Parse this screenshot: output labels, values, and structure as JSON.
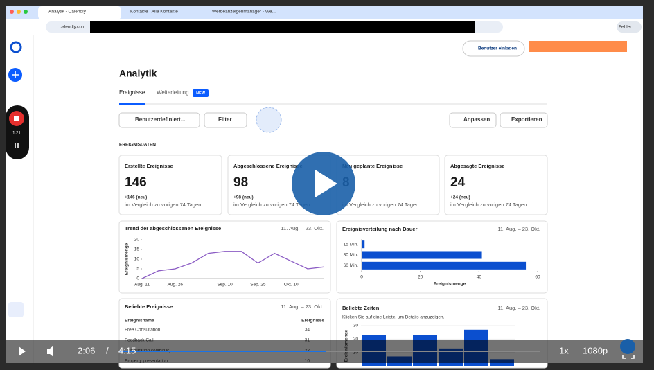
{
  "browser": {
    "tabs": [
      "Analytik - Calendly",
      "Kontakte | Alle Kontakte",
      "Werbeanzeigenmanager - We..."
    ],
    "url": "calendly.com",
    "profile_button": "Fehler"
  },
  "recorder": {
    "time": "1:21"
  },
  "header": {
    "invite_button": "Benutzer einladen"
  },
  "page": {
    "title": "Analytik",
    "tabs": [
      "Ereignisse",
      "Weiterleitung"
    ],
    "new_badge": "NEW",
    "date_filter": "Benutzerdefiniert...",
    "filter": "Filter",
    "customize": "Anpassen",
    "export": "Exportieren",
    "section_label": "EREIGNISDATEN"
  },
  "stats": [
    {
      "label": "Erstellte Ereignisse",
      "value": 146,
      "change": "+146 (neu)",
      "comparison": "im Vergleich zu vorigen 74 Tagen"
    },
    {
      "label": "Abgeschlossene Ereignisse",
      "value": 98,
      "change": "+98 (neu)",
      "comparison": "im Vergleich zu vorigen 74 Tagen"
    },
    {
      "label": "Neu geplante Ereignisse",
      "value": 8,
      "comparison": "im Vergleich zu vorigen 74 Tagen"
    },
    {
      "label": "Abgesagte Ereignisse",
      "value": 24,
      "change": "+24 (neu)",
      "comparison": "im Vergleich zu vorigen 74 Tagen"
    }
  ],
  "trend_chart": {
    "type": "line",
    "title": "Trend der abgeschlossenen Ereignisse",
    "date_range": "11. Aug. – 23. Okt.",
    "ylabel": "Ereignismenge",
    "categories": [
      "Aug. 11",
      null,
      "Aug. 26",
      null,
      null,
      "Sep. 10",
      null,
      "Sep. 25",
      null,
      "Okt. 10",
      null,
      null
    ],
    "values": [
      0,
      4,
      5,
      8,
      13,
      14,
      14,
      8,
      13,
      9,
      5,
      6
    ],
    "color": "#8b5cc4",
    "ylim": [
      0,
      20
    ],
    "yticks": [
      0,
      5,
      10,
      15,
      20
    ]
  },
  "duration_chart": {
    "type": "bar",
    "orientation": "horizontal",
    "title": "Ereignisverteilung nach Dauer",
    "date_range": "11. Aug. – 23. Okt.",
    "categories": [
      "15 Min.",
      "30 Min.",
      "60 Min."
    ],
    "values": [
      1,
      41,
      56
    ],
    "color": "#0b4fcf",
    "xlim": [
      0,
      60
    ],
    "xticks": [
      0,
      20,
      40,
      60
    ],
    "xlabel": "Ereignismenge"
  },
  "popular_events": {
    "title": "Beliebte Ereignisse",
    "date_range": "11. Aug. – 23. Okt.",
    "columns": [
      "Ereignisname",
      "Ereignisse"
    ],
    "rows": [
      [
        "Free Consultation",
        34
      ],
      [
        "Feedback Call",
        31
      ],
      [
        "Consultation (Webinar)",
        22
      ],
      [
        "Property presentation",
        10
      ]
    ]
  },
  "times_chart": {
    "type": "bar",
    "title": "Beliebte Zeiten",
    "date_range": "11. Aug. – 23. Okt.",
    "subtitle": "Klicken Sie auf eine Leiste, um Details anzuzeigen.",
    "ylabel": "Ereignismenge",
    "categories": [
      null,
      null,
      null,
      null,
      null,
      null
    ],
    "values": [
      23,
      7,
      23,
      13,
      27,
      5
    ],
    "color": "#0b4fcf",
    "ylim": [
      0,
      30
    ],
    "yticks": [
      10,
      20,
      30
    ]
  },
  "video": {
    "current": "2:06",
    "separator": "/",
    "duration": "4:15",
    "speed": "1x",
    "quality": "1080p"
  }
}
